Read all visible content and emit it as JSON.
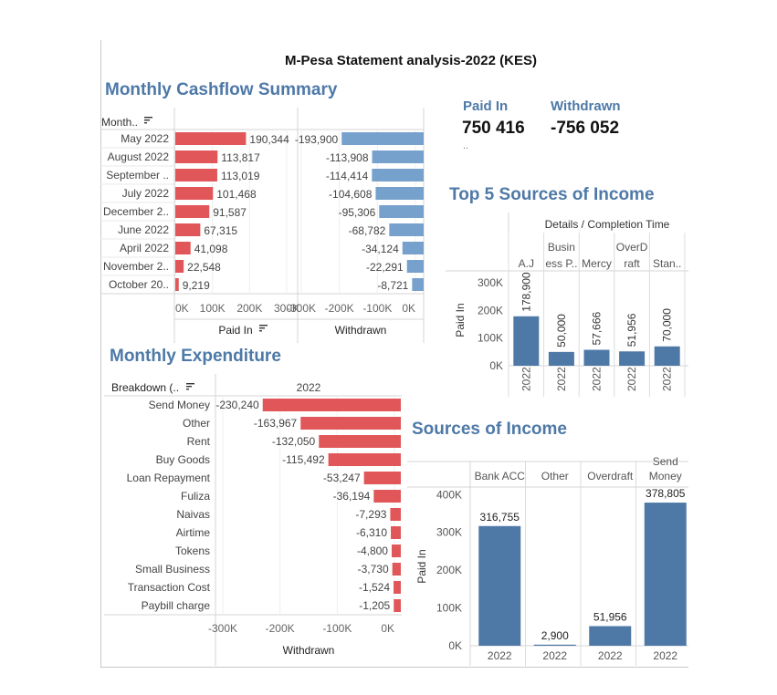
{
  "page_title": "M-Pesa Statement analysis-2022 (KES)",
  "kpis": {
    "paid_in_label": "Paid In",
    "paid_in_value": "750 416",
    "withdrawn_label": "Withdrawn",
    "withdrawn_value": "-756 052",
    "dots": ".."
  },
  "colors": {
    "red": "#e15759",
    "blue": "#4e79a7",
    "steel": "#76a1cc",
    "title": "#4e79a7"
  },
  "icons": [
    "sort-icon"
  ],
  "chart_data": [
    {
      "id": "monthly_cashflow",
      "type": "bar",
      "orientation": "horizontal",
      "title": "Monthly Cashflow Summary",
      "row_header": "Month..",
      "categories": [
        "May 2022",
        "August 2022",
        "September ..",
        "July 2022",
        "December 2..",
        "June 2022",
        "April 2022",
        "November 2..",
        "October 20.."
      ],
      "series": [
        {
          "name": "Paid In",
          "values": [
            190344,
            113817,
            113019,
            101468,
            91587,
            67315,
            41098,
            22548,
            9219
          ],
          "labels": [
            "190,344",
            "113,817",
            "113,019",
            "101,468",
            "91,587",
            "67,315",
            "41,098",
            "22,548",
            "9,219"
          ],
          "xlim": [
            0,
            300000
          ],
          "ticks": [
            0,
            100000,
            200000,
            300000
          ],
          "tick_labels": [
            "0K",
            "100K",
            "200K",
            "300K"
          ]
        },
        {
          "name": "Withdrawn",
          "values": [
            -193900,
            -113908,
            -114414,
            -104608,
            -95306,
            -68782,
            -34124,
            -22291,
            -8721
          ],
          "labels": [
            "-193,900",
            "-113,908",
            "-114,414",
            "-104,608",
            "-95,306",
            "-68,782",
            "-34,124",
            "-22,291",
            "-8,721"
          ],
          "xlim": [
            -300000,
            0
          ],
          "ticks": [
            -300000,
            -200000,
            -100000,
            0
          ],
          "tick_labels": [
            "-300K",
            "-200K",
            "-100K",
            "0K"
          ]
        }
      ]
    },
    {
      "id": "top5_sources",
      "type": "bar",
      "title": "Top 5 Sources of Income",
      "header": "Details / Completion Time",
      "categories": [
        "A.J",
        "Busin ess P..",
        "Mercy",
        "OverD raft",
        "Stan.."
      ],
      "category_lines": [
        [
          "A.J"
        ],
        [
          "Busin",
          "ess P.."
        ],
        [
          "Mercy"
        ],
        [
          "OverD",
          "raft"
        ],
        [
          "Stan.."
        ]
      ],
      "x_labels": [
        "2022",
        "2022",
        "2022",
        "2022",
        "2022"
      ],
      "values": [
        178900,
        50000,
        57666,
        51956,
        70000
      ],
      "labels": [
        "178,900",
        "50,000",
        "57,666",
        "51,956",
        "70,000"
      ],
      "ylabel": "Paid In",
      "ylim": [
        0,
        330000
      ],
      "ticks": [
        0,
        100000,
        200000,
        300000
      ],
      "tick_labels": [
        "0K",
        "100K",
        "200K",
        "300K"
      ]
    },
    {
      "id": "monthly_expenditure",
      "type": "bar",
      "orientation": "horizontal",
      "title": "Monthly Expenditure",
      "row_header": "Breakdown (..",
      "column_header": "2022",
      "categories": [
        "Send Money",
        "Other",
        "Rent",
        "Buy Goods",
        "Loan Repayment",
        "Fuliza",
        "Naivas",
        "Airtime",
        "Tokens",
        "Small Business",
        "Transaction Cost",
        "Paybill charge"
      ],
      "values": [
        -230240,
        -163967,
        -132050,
        -115492,
        -53247,
        -36194,
        -7293,
        -6310,
        -4800,
        -3730,
        -1524,
        -1205
      ],
      "labels": [
        "-230,240",
        "-163,967",
        "-132,050",
        "-115,492",
        "-53,247",
        "-36,194",
        "-7,293",
        "-6,310",
        "-4,800",
        "-3,730",
        "-1,524",
        "-1,205"
      ],
      "xlabel": "Withdrawn",
      "xlim": [
        -300000,
        0
      ],
      "ticks": [
        -300000,
        -200000,
        -100000,
        0
      ],
      "tick_labels": [
        "-300K",
        "-200K",
        "-100K",
        "0K"
      ]
    },
    {
      "id": "sources_of_income",
      "type": "bar",
      "title": "Sources of Income",
      "categories": [
        "Bank ACC",
        "Other",
        "Overdraft",
        "Send Money"
      ],
      "category_lines": [
        [
          "Bank ACC"
        ],
        [
          "Other"
        ],
        [
          "Overdraft"
        ],
        [
          "Send",
          "Money"
        ]
      ],
      "x_labels": [
        "2022",
        "2022",
        "2022",
        "2022"
      ],
      "values": [
        316755,
        2900,
        51956,
        378805
      ],
      "labels": [
        "316,755",
        "2,900",
        "51,956",
        "378,805"
      ],
      "ylabel": "Paid In",
      "ylim": [
        0,
        420000
      ],
      "ticks": [
        0,
        100000,
        200000,
        300000,
        400000
      ],
      "tick_labels": [
        "0K",
        "100K",
        "200K",
        "300K",
        "400K"
      ]
    }
  ]
}
